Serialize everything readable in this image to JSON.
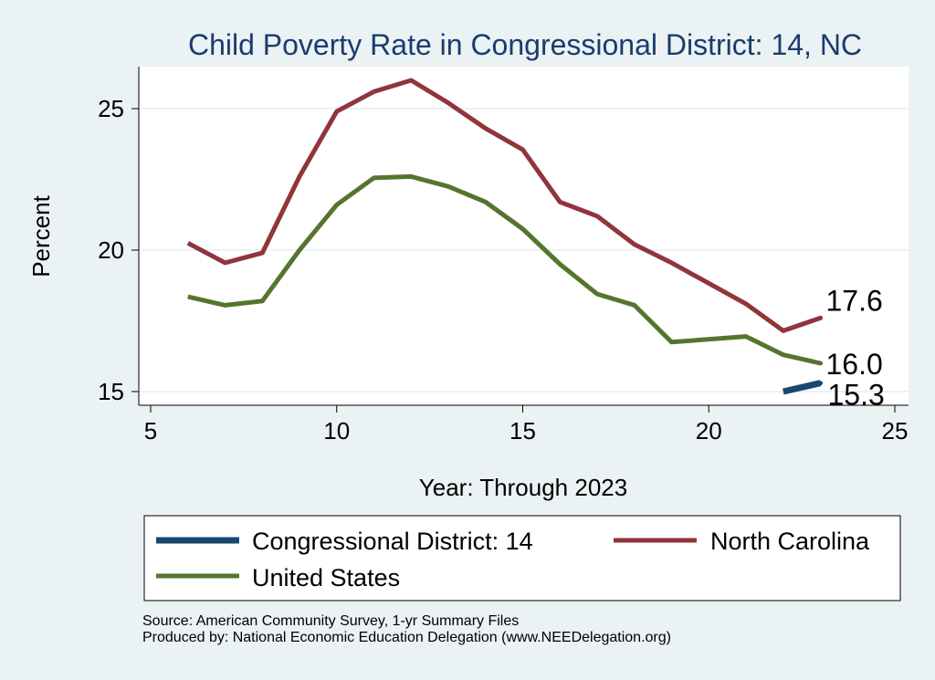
{
  "chart_data": {
    "type": "line",
    "title": "Child Poverty Rate in Congressional District:  14, NC",
    "xlabel": "Year: Through 2023",
    "ylabel": "Percent",
    "xlim": [
      5,
      25
    ],
    "ylim": [
      15,
      26
    ],
    "xticks": [
      5,
      10,
      15,
      20,
      25
    ],
    "yticks": [
      15,
      20,
      25
    ],
    "grid": true,
    "series": [
      {
        "name": "Congressional District:  14",
        "color": "#1a476f",
        "x": [
          22,
          23
        ],
        "values": [
          15.0,
          15.3
        ],
        "end_label": "15.3"
      },
      {
        "name": "North Carolina",
        "color": "#90353b",
        "x": [
          6,
          7,
          8,
          9,
          10,
          11,
          12,
          13,
          14,
          15,
          16,
          17,
          18,
          19,
          21,
          22,
          23
        ],
        "values": [
          20.25,
          19.55,
          19.9,
          22.6,
          24.9,
          25.6,
          26.0,
          25.2,
          24.3,
          23.55,
          21.7,
          21.2,
          20.2,
          19.55,
          18.1,
          17.15,
          17.6
        ],
        "end_label": "17.6"
      },
      {
        "name": "United States",
        "color": "#55752f",
        "x": [
          6,
          7,
          8,
          9,
          10,
          11,
          12,
          13,
          14,
          15,
          16,
          17,
          18,
          19,
          21,
          22,
          23
        ],
        "values": [
          18.35,
          18.05,
          18.2,
          20.0,
          21.6,
          22.55,
          22.6,
          22.25,
          21.7,
          20.75,
          19.5,
          18.45,
          18.05,
          16.75,
          16.95,
          16.3,
          16.0
        ],
        "end_label": "16.0"
      }
    ],
    "legend_position": "bottom"
  },
  "footer": {
    "source": "Source: American Community Survey, 1-yr Summary Files",
    "producer": "Produced by: National Economic Education Delegation (www.NEEDelegation.org)"
  }
}
